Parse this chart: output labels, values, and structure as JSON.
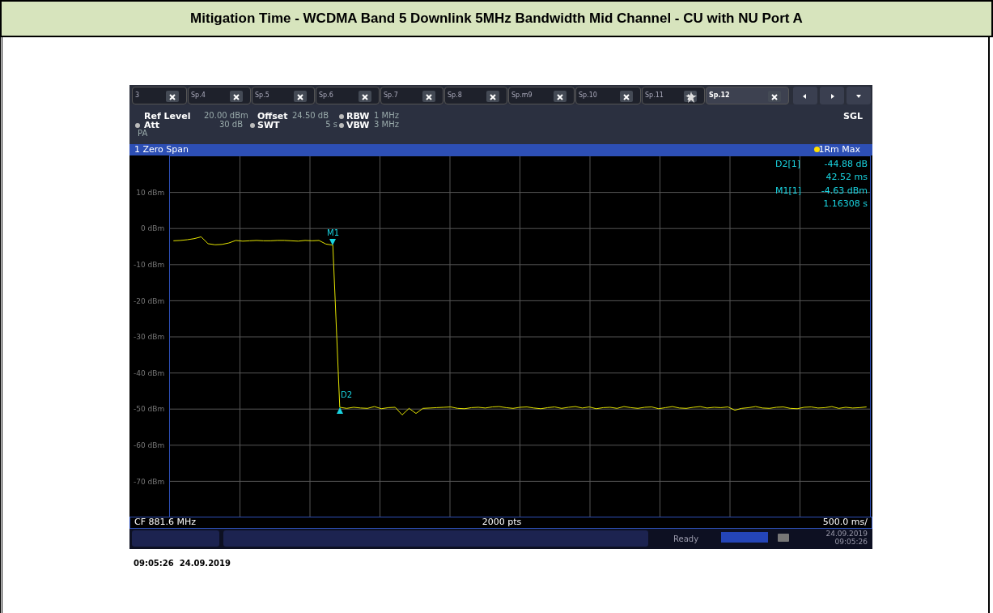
{
  "chart_data": {
    "type": "line",
    "title": "Mitigation Time - WCDMA Band 5 Downlink 5MHz Bandwidth Mid Channel - CU with NU Port A",
    "categories": [
      null,
      null,
      null,
      null,
      null,
      null,
      null,
      null,
      null,
      null,
      null,
      null,
      null,
      null,
      null,
      null,
      null,
      null,
      null,
      null,
      null,
      null,
      null,
      null,
      null,
      null,
      null,
      null,
      null,
      null,
      null,
      null,
      null,
      null,
      null,
      null,
      null,
      null,
      null,
      null,
      null,
      null,
      null,
      null,
      null,
      null,
      null,
      null,
      null,
      null,
      null,
      null,
      null,
      null,
      null,
      null,
      null,
      null,
      null,
      null,
      null,
      null,
      null,
      null,
      null,
      null,
      null,
      null,
      null,
      null,
      null,
      null,
      null,
      null,
      null,
      null,
      null,
      null,
      null,
      null,
      null,
      null,
      null,
      null,
      null,
      null,
      null,
      null,
      null,
      null,
      null,
      null,
      null,
      null,
      null,
      null,
      null,
      null,
      null,
      null,
      null
    ],
    "series": [
      {
        "color": "#e6e600",
        "values": [
          -3.4,
          -3.3,
          -3.1,
          -2.8,
          -2.3,
          -4.2,
          -4.5,
          -4.4,
          -4.0,
          -3.3,
          -3.5,
          -3.4,
          -3.3,
          -3.4,
          -3.4,
          -3.3,
          -3.3,
          -3.4,
          -3.5,
          -3.3,
          -3.4,
          -3.3,
          -4.3,
          -4.6,
          -49.5,
          -49.8,
          -49.5,
          -49.7,
          -49.8,
          -49.3,
          -49.9,
          -49.6,
          -49.5,
          -51.6,
          -49.8,
          -51.2,
          -49.8,
          -49.7,
          -49.6,
          -49.5,
          -49.4,
          -49.8,
          -49.9,
          -49.6,
          -49.5,
          -49.7,
          -49.4,
          -49.3,
          -49.6,
          -49.8,
          -49.5,
          -49.4,
          -49.7,
          -49.9,
          -49.6,
          -49.4,
          -49.8,
          -49.5,
          -49.3,
          -49.7,
          -49.4,
          -49.9,
          -49.6,
          -49.5,
          -49.8,
          -49.3,
          -49.6,
          -49.8,
          -49.5,
          -49.4,
          -49.9,
          -49.6,
          -49.3,
          -49.7,
          -49.8,
          -49.5,
          -49.3,
          -49.7,
          -49.5,
          -49.6,
          -49.4,
          -50.3,
          -49.8,
          -49.6,
          -49.3,
          -49.7,
          -49.8,
          -49.5,
          -49.4,
          -49.8,
          -49.9,
          -49.5,
          -49.4,
          -49.7,
          -49.6,
          -49.3,
          -49.8,
          -49.5,
          -49.7,
          -49.6,
          -49.4
        ]
      }
    ],
    "ylim": [
      -80,
      20
    ],
    "yticks": [
      {
        "value": 10,
        "label": "10 dBm"
      },
      {
        "value": 0,
        "label": "0 dBm"
      },
      {
        "value": -10,
        "label": "-10 dBm"
      },
      {
        "value": -20,
        "label": "-20 dBm"
      },
      {
        "value": -30,
        "label": "-30 dBm"
      },
      {
        "value": -40,
        "label": "-40 dBm"
      },
      {
        "value": -50,
        "label": "-50 dBm"
      },
      {
        "value": -60,
        "label": "-60 dBm"
      },
      {
        "value": -70,
        "label": "-70 dBm"
      }
    ],
    "grid": true,
    "tick_labels": "y",
    "line_style": "solid",
    "annotations": [
      "3",
      "Sp.4",
      "Sp.5",
      "Sp.6",
      "Sp.7",
      "Sp.8",
      "Sp.m9",
      "Sp.10",
      "Sp.11",
      "Sp.12",
      "Ref Level",
      "20.00 dBm",
      "Offset",
      "24.50 dB",
      "RBW",
      "1 MHz",
      "Att",
      "30 dB",
      "SWT",
      "5 s",
      "VBW",
      "3 MHz",
      "PA",
      "SGL",
      "1 Zero Span",
      "1Rm Max",
      "D2[1]",
      "-44.88 dB",
      "42.52 ms",
      "M1[1]",
      "-4.63 dBm",
      "1.16308 s",
      "CF 881.6 MHz",
      "2000 pts",
      "500.0 ms/",
      "Ready",
      "24.09.2019",
      "09:05:26",
      "09:05:26  24.09.2019",
      {
        "text": "M1",
        "y": -4.6
      },
      {
        "text": "D2",
        "y": -49.5
      }
    ]
  }
}
